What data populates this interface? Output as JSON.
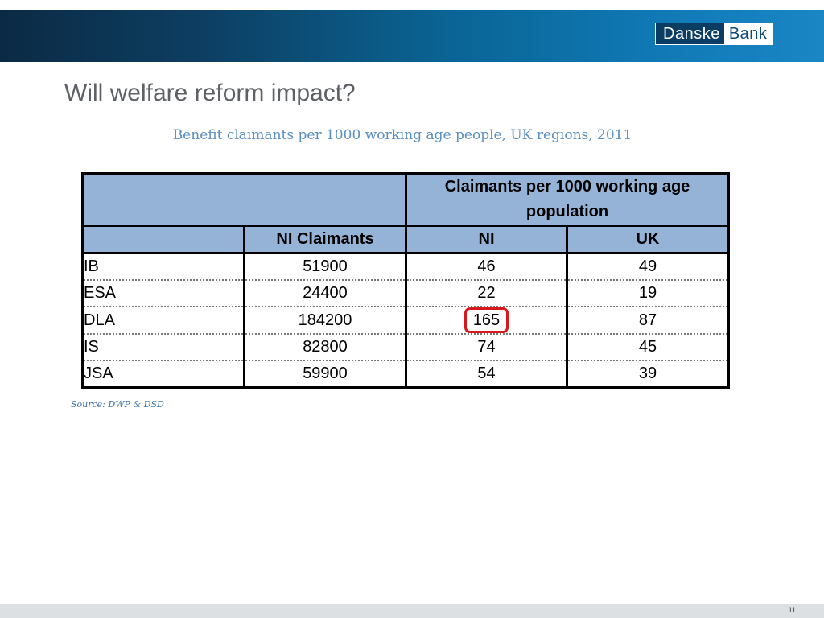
{
  "header": {
    "logo_left": "Danske",
    "logo_right": "Bank"
  },
  "title": "Will welfare reform impact?",
  "subtitle": "Benefit claimants per 1000 working age people, UK regions, 2011",
  "table": {
    "group_header": "Claimants per 1000 working age population",
    "columns": [
      "",
      "NI Claimants",
      "NI",
      "UK"
    ],
    "rows": [
      {
        "label": "IB",
        "ni_claimants": "51900",
        "ni": "46",
        "uk": "49"
      },
      {
        "label": "ESA",
        "ni_claimants": "24400",
        "ni": "22",
        "uk": "19"
      },
      {
        "label": "DLA",
        "ni_claimants": "184200",
        "ni": "165",
        "uk": "87"
      },
      {
        "label": "IS",
        "ni_claimants": "82800",
        "ni": "74",
        "uk": "45"
      },
      {
        "label": "JSA",
        "ni_claimants": "59900",
        "ni": "54",
        "uk": "39"
      }
    ],
    "highlight_color": "#d7191c",
    "header_color": "#95b3d7"
  },
  "source": "Source: DWP & DSD",
  "page_number": "11",
  "colors": {
    "title": "#5d6166",
    "subtitle": "#5b8fbf",
    "brand_dark": "#0b3d63"
  }
}
